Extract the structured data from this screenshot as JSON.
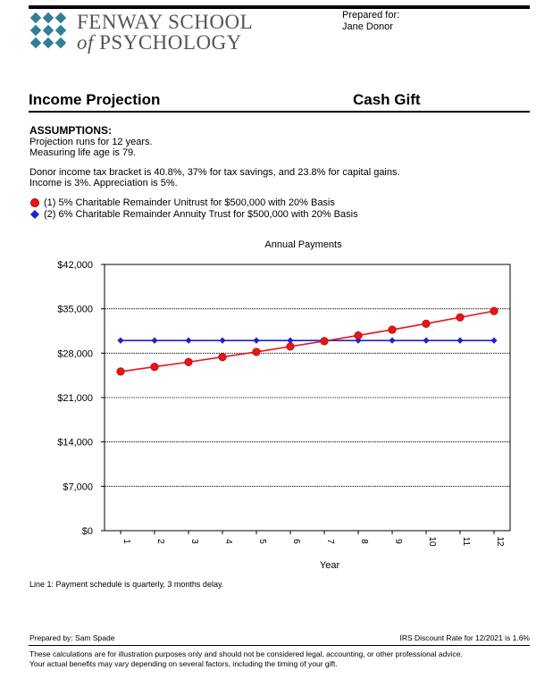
{
  "logo": {
    "line1": "FENWAY SCHOOL",
    "of": "of",
    "line2": "PSYCHOLOGY",
    "color": "#2f7f97"
  },
  "prepared_for": {
    "label": "Prepared for:",
    "name": "Jane Donor"
  },
  "header": {
    "title_left": "Income Projection",
    "title_right": "Cash Gift"
  },
  "assumptions": {
    "heading": "ASSUMPTIONS:",
    "line1": "Projection runs for 12 years.",
    "line2": "Measuring life age is 79.",
    "line3": "Donor income tax bracket is 40.8%, 37% for tax savings, and 23.8% for capital gains.",
    "line4": "Income is 3%. Appreciation is 5%.",
    "legend": [
      {
        "label": "(1) 5% Charitable Remainder Unitrust for $500,000 with 20% Basis",
        "marker": "circle",
        "color": "#e8141a"
      },
      {
        "label": "(2) 6% Charitable Remainder Annuity Trust for $500,000 with 20% Basis",
        "marker": "diamond",
        "color": "#1f1fd6"
      }
    ]
  },
  "chart_data": {
    "type": "line",
    "title": "Annual Payments",
    "xlabel": "Year",
    "ylabel": "",
    "x": [
      1,
      2,
      3,
      4,
      5,
      6,
      7,
      8,
      9,
      10,
      11,
      12
    ],
    "ylim": [
      0,
      42000
    ],
    "yticks": [
      "$0",
      "$7,000",
      "$14,000",
      "$21,000",
      "$28,000",
      "$35,000",
      "$42,000"
    ],
    "ytick_values": [
      0,
      7000,
      14000,
      21000,
      28000,
      35000,
      42000
    ],
    "grid": true,
    "series": [
      {
        "name": "(1) 5% Charitable Remainder Unitrust for $500,000 with 20% Basis",
        "color": "#e8141a",
        "marker": "circle",
        "values": [
          25100,
          25850,
          26600,
          27400,
          28200,
          29050,
          29900,
          30800,
          31700,
          32650,
          33650,
          34650
        ]
      },
      {
        "name": "(2) 6% Charitable Remainder Annuity Trust for $500,000 with 20% Basis",
        "color": "#1f1fd6",
        "marker": "diamond",
        "values": [
          30000,
          30000,
          30000,
          30000,
          30000,
          30000,
          30000,
          30000,
          30000,
          30000,
          30000,
          30000
        ]
      }
    ]
  },
  "note": "Line 1: Payment schedule is quarterly, 3 months delay.",
  "footer": {
    "prepared_by": "Prepared by: Sam Spade",
    "irs_rate": "IRS Discount Rate for 12/2021 is 1.6%",
    "disclaimer1": "These calculations are for illustration purposes only and should not be considered legal, accounting, or other professional advice.",
    "disclaimer2": "Your actual benefits may vary depending on several factors, including the timing of your gift."
  }
}
